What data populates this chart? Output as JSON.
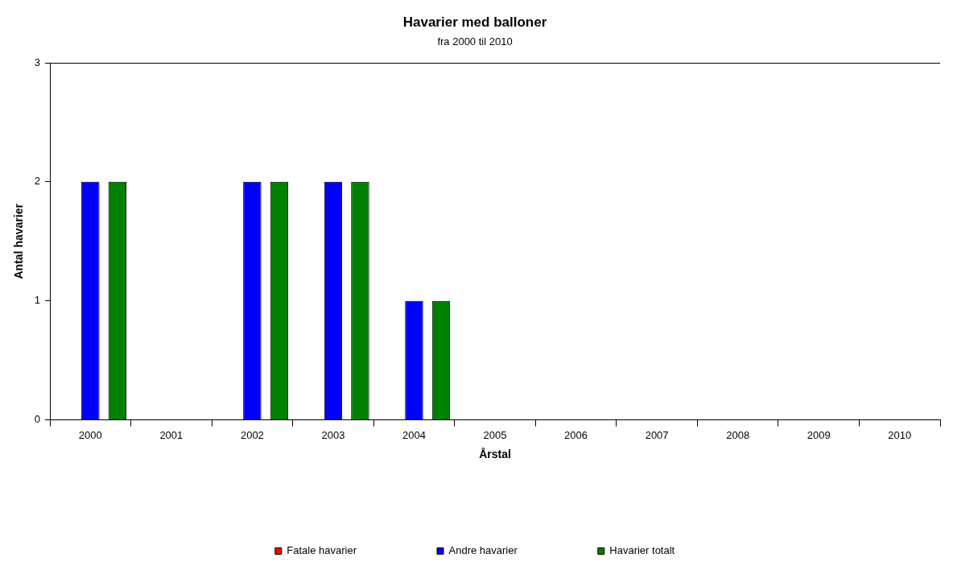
{
  "chart_data": {
    "type": "bar",
    "title": "Havarier med balloner",
    "subtitle": "fra 2000 til 2010",
    "xlabel": "Årstal",
    "ylabel": "Antal havarier",
    "categories": [
      "2000",
      "2001",
      "2002",
      "2003",
      "2004",
      "2005",
      "2006",
      "2007",
      "2008",
      "2009",
      "2010"
    ],
    "series": [
      {
        "name": "Fatale havarier",
        "color": "#ff0000",
        "values": [
          0,
          0,
          0,
          0,
          0,
          0,
          0,
          0,
          0,
          0,
          0
        ]
      },
      {
        "name": "Andre havarier",
        "color": "#0000ff",
        "values": [
          2,
          0,
          2,
          2,
          1,
          0,
          0,
          0,
          0,
          0,
          0
        ]
      },
      {
        "name": "Havarier totalt",
        "color": "#008000",
        "values": [
          2,
          0,
          2,
          2,
          1,
          0,
          0,
          0,
          0,
          0,
          0
        ]
      }
    ],
    "ylim": [
      0,
      3
    ],
    "yticks": [
      0,
      1,
      2,
      3
    ],
    "grid": false,
    "legend": "bottom"
  }
}
